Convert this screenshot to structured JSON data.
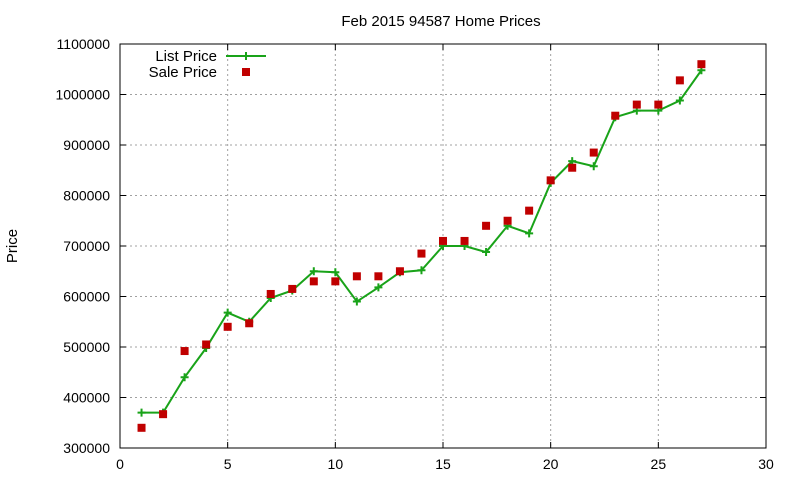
{
  "chart_data": {
    "type": "line",
    "title": "Feb 2015 94587 Home Prices",
    "xlabel": "",
    "ylabel": "Price",
    "xlim": [
      0,
      30
    ],
    "ylim": [
      300000,
      1100000
    ],
    "xticks": [
      0,
      5,
      10,
      15,
      20,
      25,
      30
    ],
    "yticks": [
      300000,
      400000,
      500000,
      600000,
      700000,
      800000,
      900000,
      1000000,
      1100000
    ],
    "grid": true,
    "legend_position": "top-left",
    "series": [
      {
        "name": "List Price",
        "style": "line+cross",
        "color": "#19a319",
        "x": [
          1,
          2,
          3,
          4,
          5,
          6,
          7,
          8,
          9,
          10,
          11,
          12,
          13,
          14,
          15,
          16,
          17,
          18,
          19,
          20,
          21,
          22,
          23,
          24,
          25,
          26,
          27
        ],
        "y": [
          370000,
          370000,
          440000,
          498000,
          568000,
          550000,
          597000,
          612000,
          650000,
          648000,
          590000,
          618000,
          648000,
          652000,
          700000,
          700000,
          688000,
          740000,
          725000,
          825000,
          868000,
          858000,
          955000,
          968000,
          968000,
          988000,
          1048000
        ]
      },
      {
        "name": "Sale Price",
        "style": "square",
        "color": "#c00000",
        "x": [
          1,
          2,
          3,
          4,
          5,
          6,
          7,
          8,
          9,
          10,
          11,
          12,
          13,
          14,
          15,
          16,
          17,
          18,
          19,
          20,
          21,
          22,
          23,
          24,
          25,
          26,
          27
        ],
        "y": [
          340000,
          367000,
          492000,
          505000,
          540000,
          547000,
          605000,
          615000,
          630000,
          630000,
          640000,
          640000,
          650000,
          685000,
          710000,
          710000,
          740000,
          750000,
          770000,
          830000,
          855000,
          885000,
          958000,
          980000,
          980000,
          1028000,
          1060000
        ]
      }
    ]
  }
}
